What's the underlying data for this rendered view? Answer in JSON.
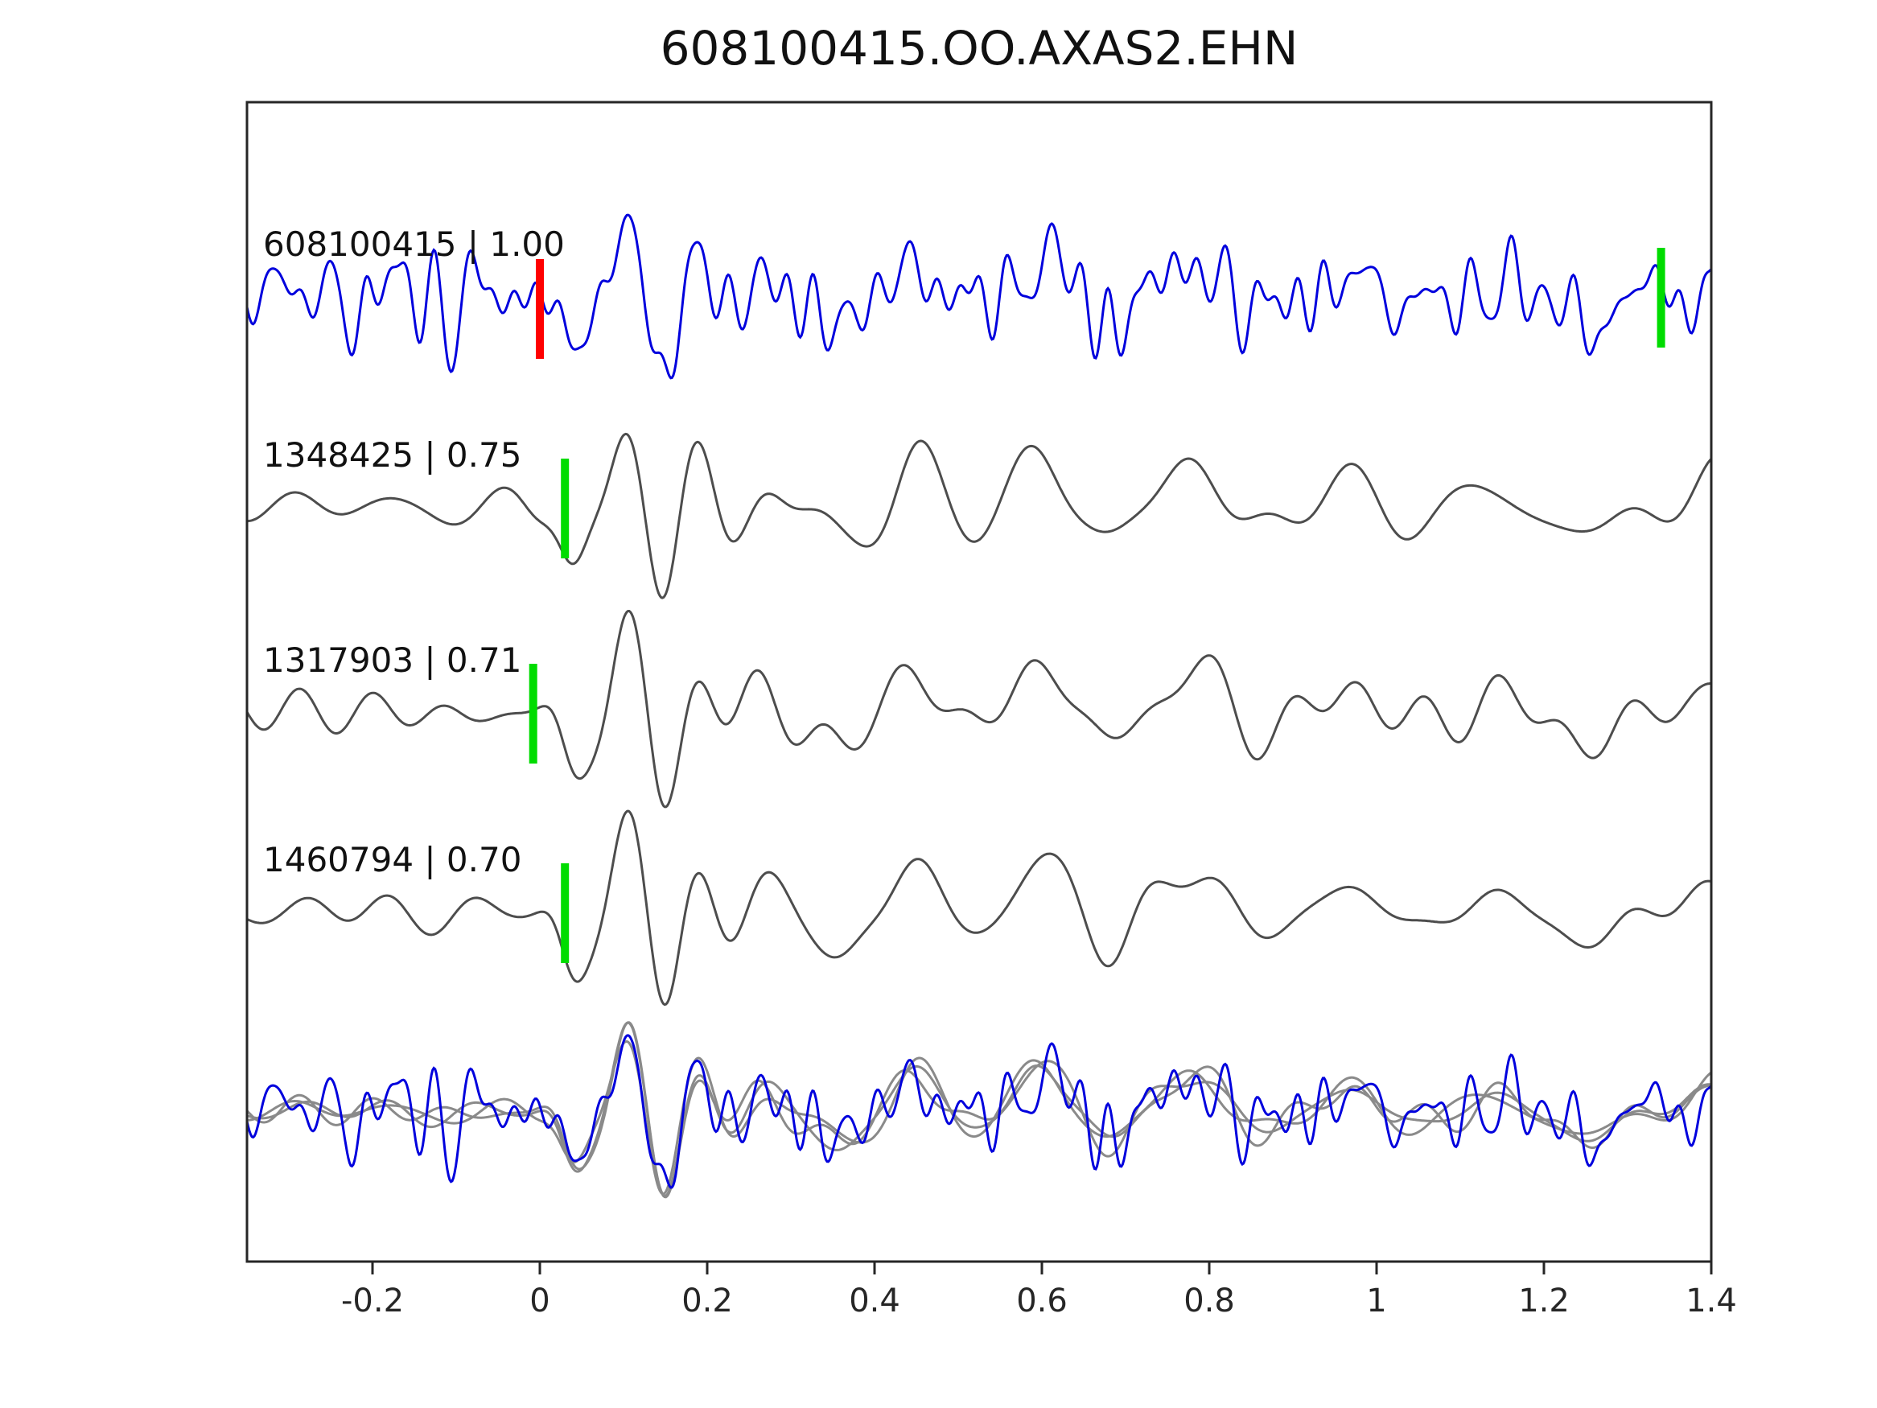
{
  "chart_data": {
    "type": "line",
    "title": "608100415.OO.AXAS2.EHN",
    "xlabel": "",
    "ylabel": "",
    "grid": false,
    "legend": "none",
    "xlim": [
      -0.35,
      1.4
    ],
    "x_ticks": [
      -0.2,
      0,
      0.2,
      0.4,
      0.6,
      0.8,
      1,
      1.2,
      1.4
    ],
    "x_tick_labels": [
      "-0.2",
      "0",
      "0.2",
      "0.4",
      "0.6",
      "0.8",
      "1",
      "1.2",
      "1.4"
    ],
    "colors": {
      "detection": "#0000dd",
      "template": "#4d4d4d",
      "overlay_template": "#8a8a8a",
      "pick_green": "#00dc00",
      "pick_red": "#ff0000",
      "axis": "#262626"
    },
    "base_packets": [
      {
        "t0": 0.04,
        "w": 0.03,
        "f": 10,
        "amp": 0.55,
        "ph": -1.5708
      },
      {
        "t0": 0.105,
        "w": 0.048,
        "f": 9,
        "amp": 1.3,
        "ph": 1.5708
      },
      {
        "t0": 0.15,
        "w": 0.035,
        "f": 9,
        "amp": 0.75,
        "ph": -1.5708
      },
      {
        "t0": 0.195,
        "w": 0.04,
        "f": 8,
        "amp": 0.65,
        "ph": 1.5708
      },
      {
        "t0": 0.265,
        "w": 0.05,
        "f": 7,
        "amp": 0.3,
        "ph": 1.5708
      },
      {
        "t0": 0.36,
        "w": 0.05,
        "f": 6,
        "amp": 0.45,
        "ph": -1.5708
      },
      {
        "t0": 0.445,
        "w": 0.055,
        "f": 6,
        "amp": 0.6,
        "ph": 1.5708
      },
      {
        "t0": 0.6,
        "w": 0.06,
        "f": 5.5,
        "amp": 0.6,
        "ph": 1.5708
      },
      {
        "t0": 0.68,
        "w": 0.05,
        "f": 6,
        "amp": 0.5,
        "ph": -1.5708
      },
      {
        "t0": 0.78,
        "w": 0.07,
        "f": 5,
        "amp": 0.3,
        "ph": 1.5708
      },
      {
        "t0": 0.93,
        "w": 0.16,
        "f": 4.5,
        "amp": 0.28,
        "ph": 0
      },
      {
        "t0": 1.12,
        "w": 0.12,
        "f": 5,
        "amp": 0.25,
        "ph": 1.0
      },
      {
        "t0": 1.28,
        "w": 0.1,
        "f": 4,
        "amp": 0.3,
        "ph": -0.8
      },
      {
        "t0": 1.4,
        "w": 0.07,
        "f": 5,
        "amp": 0.4,
        "ph": 1.3
      },
      {
        "t0": 0.5,
        "w": 0.8,
        "f": 0.8,
        "amp": 0.12,
        "ph": 0.3
      }
    ],
    "traces": [
      {
        "id": "detection",
        "event_id": "608100415",
        "correlation": "1.00",
        "label": "608100415 | 1.00",
        "color": "#0000dd",
        "amp": 75,
        "packet_scale": 0.85,
        "noise": {
          "seed": 11,
          "amp": 0.42,
          "fmin": 6,
          "fmax": 40,
          "n": 36
        },
        "markers": [
          {
            "x": 0.0,
            "color": "#ff0000",
            "dy": 16
          },
          {
            "x": 1.34,
            "color": "#00dc00",
            "dy": 2
          }
        ]
      },
      {
        "id": "template-1348425",
        "event_id": "1348425",
        "correlation": "0.75",
        "label": "1348425 | 0.75",
        "color": "#4d4d4d",
        "amp": 90,
        "packet_scale": 1.0,
        "noise": {
          "seed": 3,
          "amp": 0.16,
          "fmin": 5,
          "fmax": 13,
          "n": 18
        },
        "markers": [
          {
            "x": 0.03,
            "color": "#00dc00",
            "dy": 2
          }
        ]
      },
      {
        "id": "template-1317903",
        "event_id": "1317903",
        "correlation": "0.71",
        "label": "1317903 | 0.71",
        "color": "#4d4d4d",
        "amp": 90,
        "packet_scale": 1.0,
        "noise": {
          "seed": 4,
          "amp": 0.16,
          "fmin": 5,
          "fmax": 13,
          "n": 18
        },
        "markers": [
          {
            "x": -0.008,
            "color": "#00dc00",
            "dy": 2
          }
        ]
      },
      {
        "id": "template-1460794",
        "event_id": "1460794",
        "correlation": "0.70",
        "label": "1460794 | 0.70",
        "color": "#4d4d4d",
        "amp": 90,
        "packet_scale": 1.0,
        "noise": {
          "seed": 5,
          "amp": 0.16,
          "fmin": 5,
          "fmax": 13,
          "n": 18
        },
        "markers": [
          {
            "x": 0.03,
            "color": "#00dc00",
            "dy": 2
          }
        ]
      }
    ],
    "overlay": {
      "description": "detection waveform superimposed on aligned templates",
      "traces": [
        {
          "id": "overlay-template-1348425",
          "color": "#8a8a8a",
          "amp": 80,
          "packet_scale": 1.0,
          "noise": {
            "seed": 3,
            "amp": 0.12,
            "fmin": 5,
            "fmax": 13,
            "n": 18
          }
        },
        {
          "id": "overlay-template-1317903",
          "color": "#8a8a8a",
          "amp": 80,
          "packet_scale": 1.0,
          "noise": {
            "seed": 4,
            "amp": 0.12,
            "fmin": 5,
            "fmax": 13,
            "n": 18
          }
        },
        {
          "id": "overlay-template-1460794",
          "color": "#8a8a8a",
          "amp": 80,
          "packet_scale": 1.0,
          "noise": {
            "seed": 5,
            "amp": 0.12,
            "fmin": 5,
            "fmax": 13,
            "n": 18
          }
        },
        {
          "id": "overlay-detection",
          "color": "#0000dd",
          "amp": 70,
          "packet_scale": 0.85,
          "noise": {
            "seed": 11,
            "amp": 0.42,
            "fmin": 6,
            "fmax": 40,
            "n": 36
          }
        }
      ]
    }
  }
}
